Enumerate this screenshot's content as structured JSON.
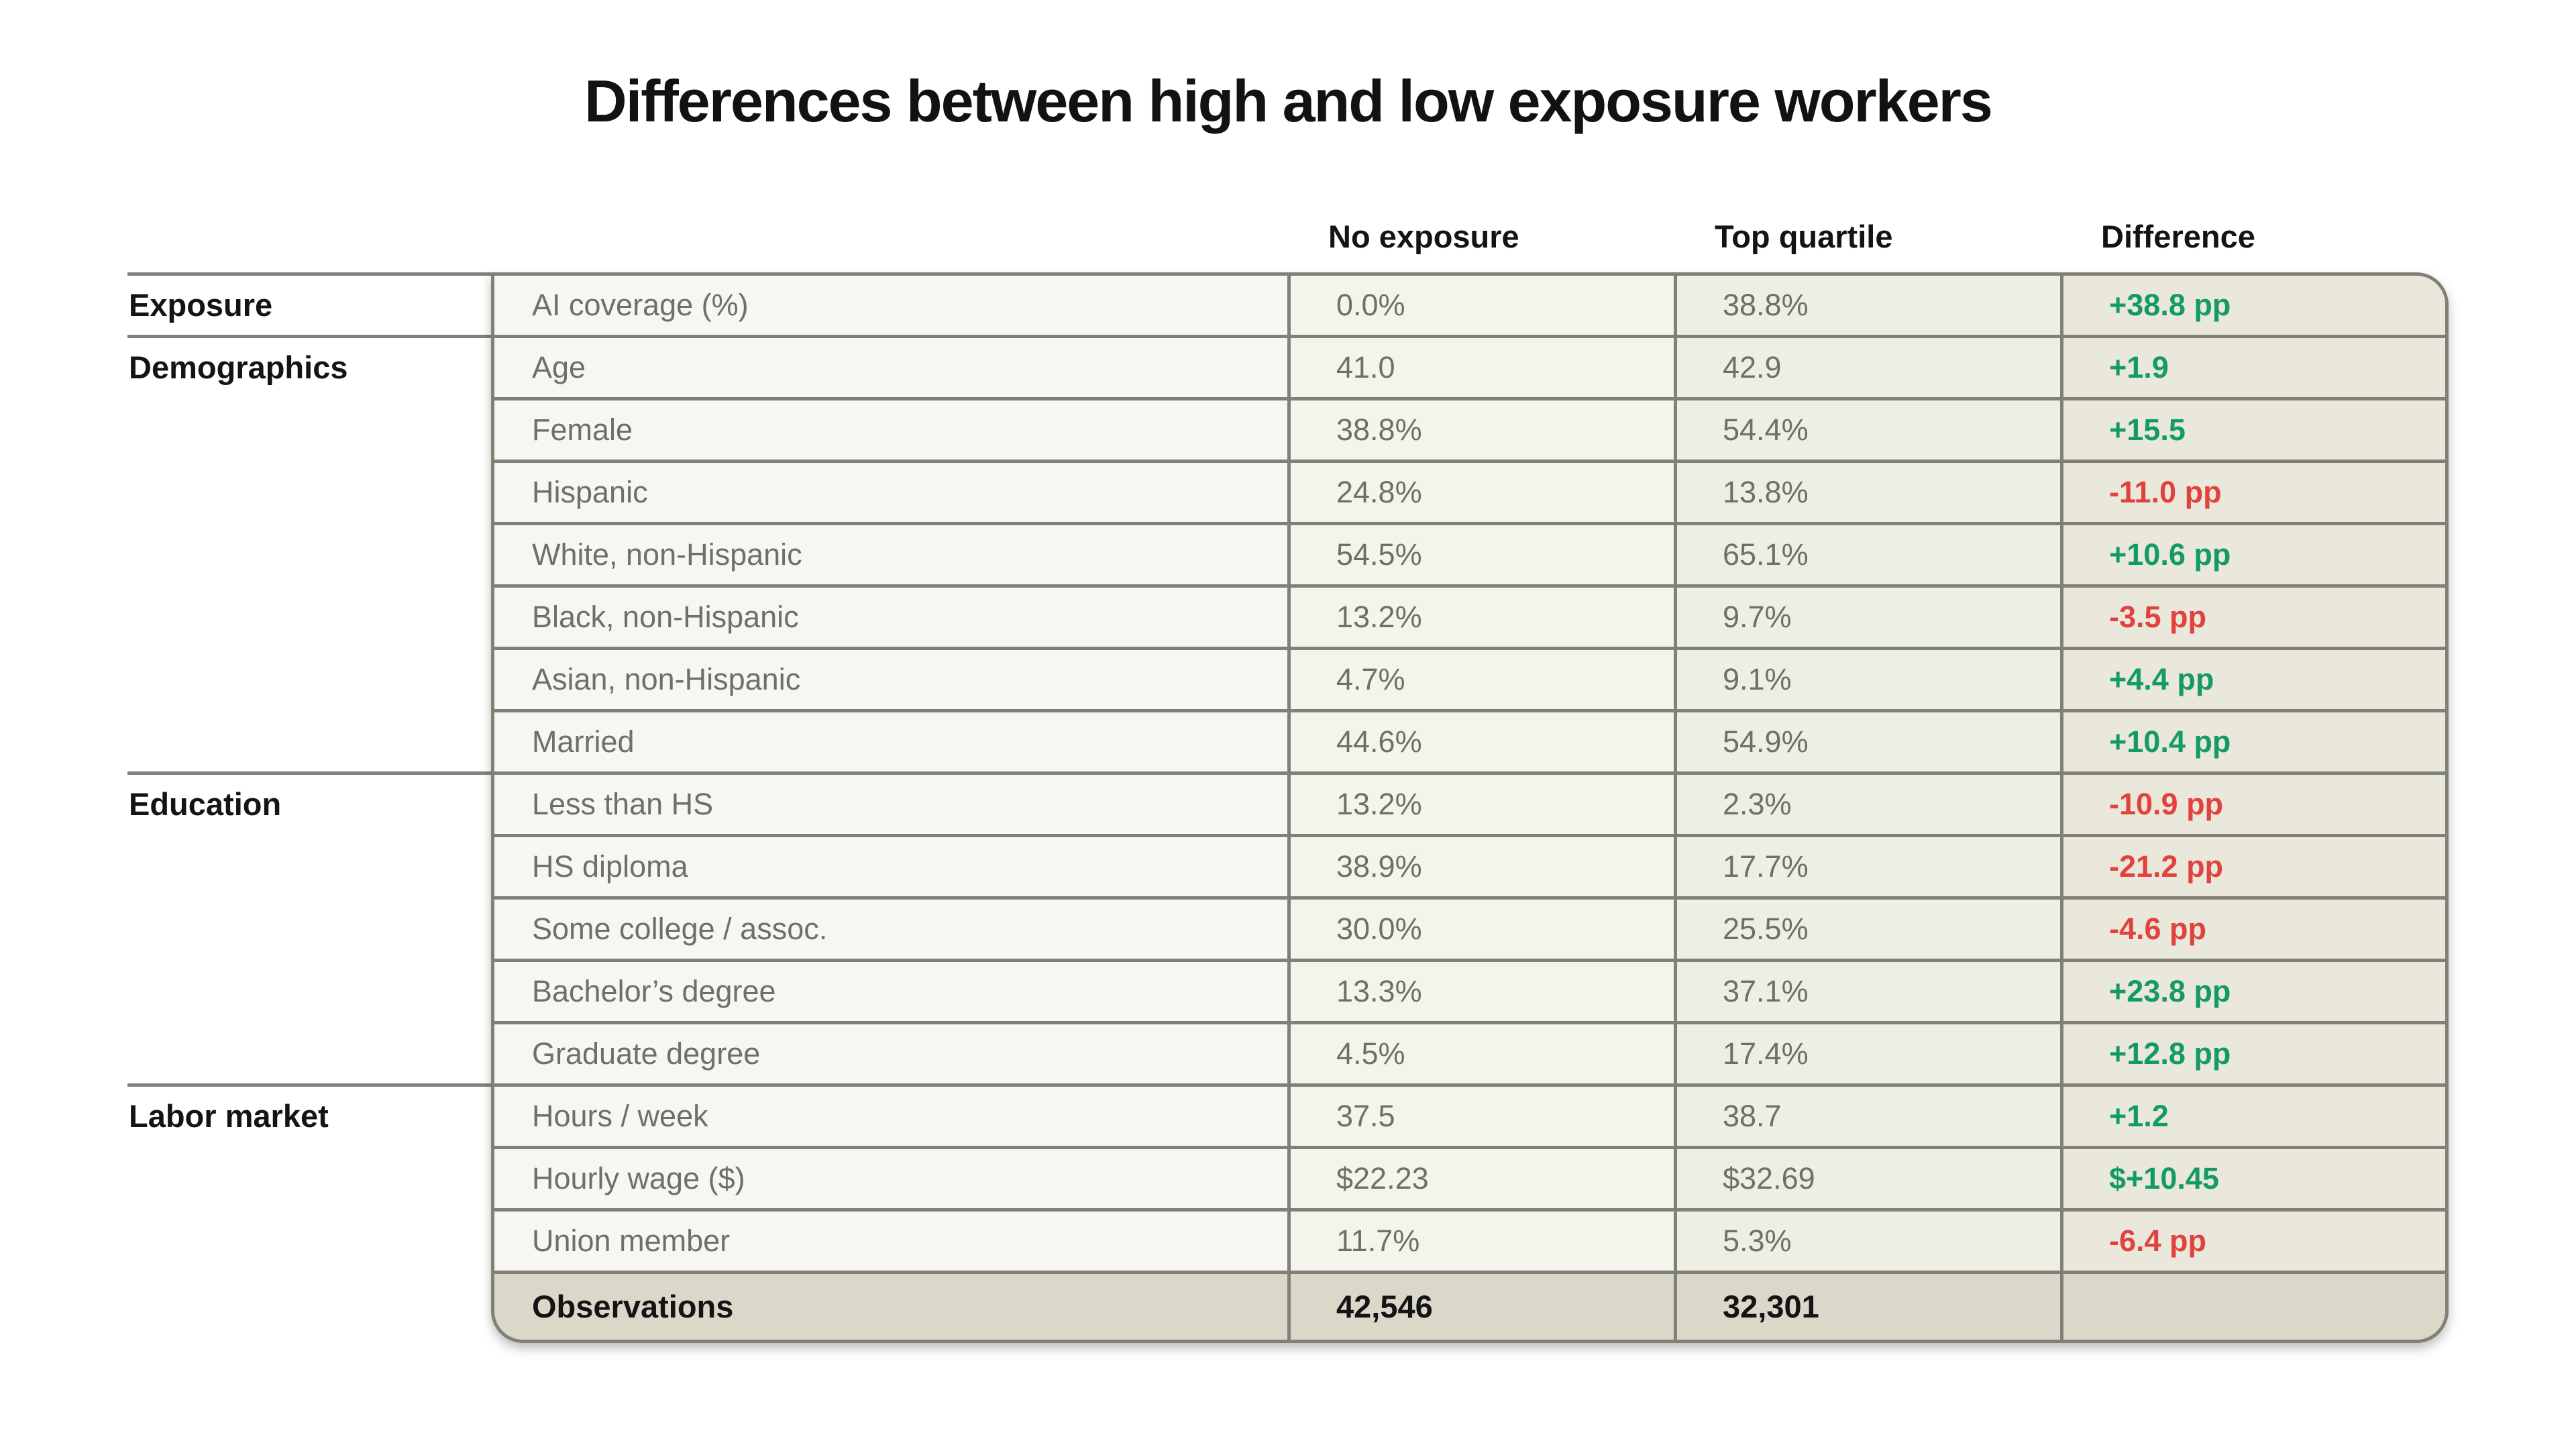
{
  "title": "Differences between high and low exposure workers",
  "colors": {
    "positive": "#149a67",
    "negative": "#e2423e",
    "line": "#7f8077",
    "muted": "#6f6f68",
    "bg-label": "#f7f6f0",
    "bg-col1": "#f5f4ec",
    "bg-col2": "#efeee3",
    "bg-diff": "#e9e8da",
    "bg-footer": "#dbd8c9"
  },
  "chart_data": {
    "type": "table",
    "title": "Differences between high and low exposure workers",
    "columns": [
      "No exposure",
      "Top quartile",
      "Difference"
    ],
    "groups": [
      {
        "label": "Exposure",
        "rows": [
          {
            "label": "AI coverage (%)",
            "no_exposure": "0.0%",
            "top_quartile": "38.8%",
            "difference": "+38.8 pp",
            "direction": "positive"
          }
        ]
      },
      {
        "label": "Demographics",
        "rows": [
          {
            "label": "Age",
            "no_exposure": "41.0",
            "top_quartile": "42.9",
            "difference": "+1.9",
            "direction": "positive"
          },
          {
            "label": "Female",
            "no_exposure": "38.8%",
            "top_quartile": "54.4%",
            "difference": "+15.5",
            "direction": "positive"
          },
          {
            "label": "Hispanic",
            "no_exposure": "24.8%",
            "top_quartile": "13.8%",
            "difference": "-11.0 pp",
            "direction": "negative"
          },
          {
            "label": "White, non-Hispanic",
            "no_exposure": "54.5%",
            "top_quartile": "65.1%",
            "difference": "+10.6 pp",
            "direction": "positive"
          },
          {
            "label": "Black, non-Hispanic",
            "no_exposure": "13.2%",
            "top_quartile": "9.7%",
            "difference": "-3.5 pp",
            "direction": "negative"
          },
          {
            "label": "Asian, non-Hispanic",
            "no_exposure": "4.7%",
            "top_quartile": "9.1%",
            "difference": "+4.4 pp",
            "direction": "positive"
          },
          {
            "label": "Married",
            "no_exposure": "44.6%",
            "top_quartile": "54.9%",
            "difference": "+10.4 pp",
            "direction": "positive"
          }
        ]
      },
      {
        "label": "Education",
        "rows": [
          {
            "label": "Less than HS",
            "no_exposure": "13.2%",
            "top_quartile": "2.3%",
            "difference": "-10.9 pp",
            "direction": "negative"
          },
          {
            "label": "HS diploma",
            "no_exposure": "38.9%",
            "top_quartile": "17.7%",
            "difference": "-21.2 pp",
            "direction": "negative"
          },
          {
            "label": "Some college / assoc.",
            "no_exposure": "30.0%",
            "top_quartile": "25.5%",
            "difference": "-4.6 pp",
            "direction": "negative"
          },
          {
            "label": "Bachelor’s degree",
            "no_exposure": "13.3%",
            "top_quartile": "37.1%",
            "difference": "+23.8 pp",
            "direction": "positive"
          },
          {
            "label": "Graduate degree",
            "no_exposure": "4.5%",
            "top_quartile": "17.4%",
            "difference": "+12.8 pp",
            "direction": "positive"
          }
        ]
      },
      {
        "label": "Labor market",
        "rows": [
          {
            "label": "Hours / week",
            "no_exposure": "37.5",
            "top_quartile": "38.7",
            "difference": "+1.2",
            "direction": "positive"
          },
          {
            "label": "Hourly wage ($)",
            "no_exposure": "$22.23",
            "top_quartile": "$32.69",
            "difference": "$+10.45",
            "direction": "positive"
          },
          {
            "label": "Union member",
            "no_exposure": "11.7%",
            "top_quartile": "5.3%",
            "difference": "-6.4 pp",
            "direction": "negative"
          }
        ]
      }
    ],
    "footer": {
      "label": "Observations",
      "no_exposure": "42,546",
      "top_quartile": "32,301",
      "difference": ""
    }
  }
}
